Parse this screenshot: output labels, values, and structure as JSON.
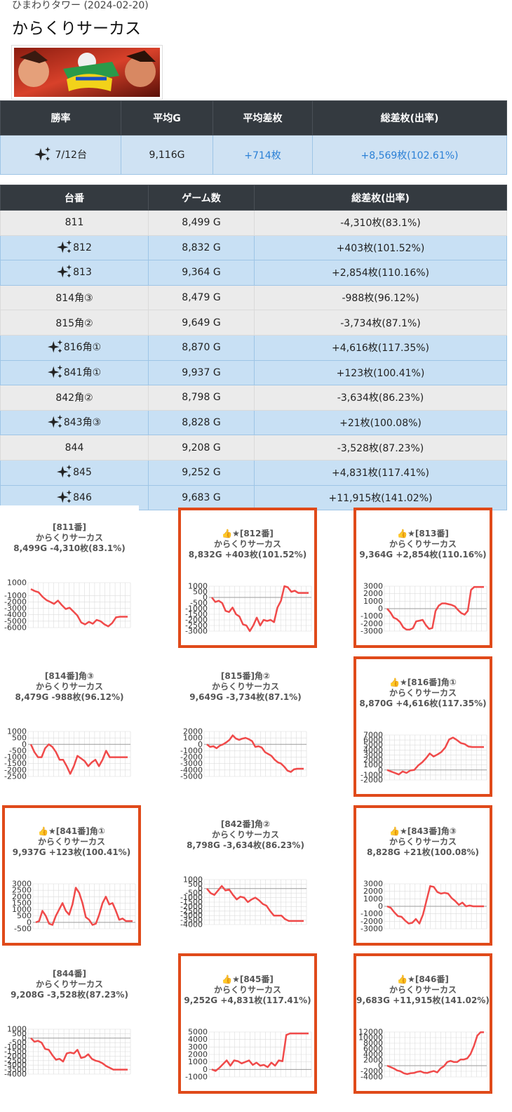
{
  "header": {
    "store_date": "ひまわりタワー (2024-02-20)",
    "machine_name": "からくりサーカス"
  },
  "colors": {
    "header_bg": "#343a40",
    "win_row": "#c8e0f4",
    "lose_row": "#ebebeb",
    "highlight_border": "#e04a1a",
    "line": "#f04a4a",
    "link_blue": "#2b80d6"
  },
  "summary": {
    "headers": [
      "勝率",
      "平均G",
      "平均差枚",
      "総差枚(出率)"
    ],
    "win_rate": "7/12台",
    "avg_games": "9,116G",
    "avg_diff": "+714枚",
    "total_diff": "+8,569枚(102.61%)"
  },
  "detail": {
    "headers": [
      "台番",
      "ゲーム数",
      "総差枚(出率)"
    ],
    "rows": [
      {
        "num": "811",
        "games": "8,499 G",
        "diff": "-4,310枚(83.1%)",
        "win": false
      },
      {
        "num": "812",
        "games": "8,832 G",
        "diff": "+403枚(101.52%)",
        "win": true
      },
      {
        "num": "813",
        "games": "9,364 G",
        "diff": "+2,854枚(110.16%)",
        "win": true
      },
      {
        "num": "814角③",
        "games": "8,479 G",
        "diff": "-988枚(96.12%)",
        "win": false
      },
      {
        "num": "815角②",
        "games": "9,649 G",
        "diff": "-3,734枚(87.1%)",
        "win": false
      },
      {
        "num": "816角①",
        "games": "8,870 G",
        "diff": "+4,616枚(117.35%)",
        "win": true
      },
      {
        "num": "841角①",
        "games": "9,937 G",
        "diff": "+123枚(100.41%)",
        "win": true
      },
      {
        "num": "842角②",
        "games": "8,798 G",
        "diff": "-3,634枚(86.23%)",
        "win": false
      },
      {
        "num": "843角③",
        "games": "8,828 G",
        "diff": "+21枚(100.08%)",
        "win": true
      },
      {
        "num": "844",
        "games": "9,208 G",
        "diff": "-3,528枚(87.23%)",
        "win": false
      },
      {
        "num": "845",
        "games": "9,252 G",
        "diff": "+4,831枚(117.41%)",
        "win": true
      },
      {
        "num": "846",
        "games": "9,683 G",
        "diff": "+11,915枚(141.02%)",
        "win": true
      }
    ]
  },
  "chart_data": [
    {
      "type": "line",
      "title": "[811番]",
      "line2": "からくりサーカス",
      "line3": "8,499G -4,310枚(83.1%)",
      "highlight": false,
      "ylim": [
        -6000,
        1000
      ],
      "yticks": [
        1000,
        -1000,
        -2000,
        -3000,
        -4000,
        -5000,
        -6000
      ],
      "values": [
        0,
        -300,
        -500,
        -1200,
        -1700,
        -2000,
        -2300,
        -1800,
        -2500,
        -3100,
        -2900,
        -3500,
        -4100,
        -5200,
        -5500,
        -5100,
        -5400,
        -4800,
        -5000,
        -5500,
        -5800,
        -5300,
        -4400,
        -4300,
        -4300,
        -4300
      ]
    },
    {
      "type": "line",
      "title": "👍★[812番]",
      "line2": "からくりサーカス",
      "line3": "8,832G +403枚(101.52%)",
      "highlight": true,
      "ylim": [
        -3000,
        1000
      ],
      "yticks": [
        1000,
        500,
        0,
        -500,
        -1000,
        -1500,
        -2000,
        -2500,
        -3000
      ],
      "values": [
        0,
        -400,
        -300,
        -500,
        -1200,
        -1300,
        -900,
        -1500,
        -1700,
        -2400,
        -2500,
        -3000,
        -2500,
        -1800,
        -2500,
        -2000,
        -2100,
        -2000,
        -2200,
        -900,
        -300,
        1000,
        900,
        500,
        600,
        400,
        400,
        400,
        400
      ]
    },
    {
      "type": "line",
      "title": "👍★[813番]",
      "line2": "からくりサーカス",
      "line3": "9,364G +2,854枚(110.16%)",
      "highlight": true,
      "ylim": [
        -3000,
        3000
      ],
      "yticks": [
        3000,
        2000,
        1000,
        0,
        -1000,
        -2000,
        -3000
      ],
      "values": [
        0,
        -500,
        -1200,
        -1400,
        -1800,
        -2500,
        -2800,
        -2800,
        -2600,
        -1700,
        -1600,
        -1500,
        -2200,
        -2700,
        -2600,
        -300,
        400,
        700,
        700,
        600,
        500,
        300,
        -200,
        -600,
        -800,
        -300,
        2500,
        2900,
        2900,
        2900,
        2900
      ]
    },
    {
      "type": "line",
      "title": "[814番]角③",
      "line2": "からくりサーカス",
      "line3": "8,479G -988枚(96.12%)",
      "highlight": false,
      "ylim": [
        -2500,
        1000
      ],
      "yticks": [
        1000,
        500,
        0,
        -500,
        -1000,
        -1500,
        -2000,
        -2500
      ],
      "values": [
        0,
        -600,
        -1000,
        -1000,
        -300,
        0,
        -200,
        -600,
        -1200,
        -1200,
        -1700,
        -2300,
        -1700,
        -900,
        -1100,
        -1300,
        -1700,
        -1400,
        -1200,
        -1700,
        -1200,
        -500,
        -1000,
        -1000,
        -1000,
        -1000,
        -1000,
        -1000
      ]
    },
    {
      "type": "line",
      "title": "[815番]角②",
      "line2": "からくりサーカス",
      "line3": "9,649G -3,734枚(87.1%)",
      "highlight": false,
      "ylim": [
        -5000,
        2000
      ],
      "yticks": [
        2000,
        1000,
        0,
        -1000,
        -2000,
        -3000,
        -4000,
        -5000
      ],
      "values": [
        0,
        -400,
        -300,
        -600,
        -200,
        0,
        300,
        700,
        1400,
        900,
        700,
        900,
        1000,
        800,
        500,
        -400,
        -300,
        -500,
        -1200,
        -1500,
        -1800,
        -2400,
        -2800,
        -3000,
        -3500,
        -4100,
        -4300,
        -3900,
        -3800,
        -3800,
        -3800
      ]
    },
    {
      "type": "line",
      "title": "👍★[816番]角①",
      "line2": "からくりサーカス",
      "line3": "8,870G +4,616枚(117.35%)",
      "highlight": true,
      "ylim": [
        -2000,
        7000
      ],
      "yticks": [
        7000,
        6000,
        5000,
        4000,
        3000,
        2000,
        1000,
        0,
        -1000,
        -2000
      ],
      "values": [
        0,
        -300,
        -600,
        -900,
        -300,
        -600,
        -100,
        0,
        900,
        1500,
        2300,
        3300,
        2700,
        3100,
        3600,
        4500,
        6100,
        6500,
        6000,
        5400,
        5200,
        4700,
        4600,
        4600,
        4600,
        4600
      ]
    },
    {
      "type": "line",
      "title": "👍★[841番]角①",
      "line2": "からくりサーカス",
      "line3": "9,937G +123枚(100.41%)",
      "highlight": true,
      "ylim": [
        -500,
        3000
      ],
      "yticks": [
        3000,
        2500,
        2000,
        1500,
        1000,
        500,
        0,
        -500
      ],
      "values": [
        0,
        100,
        900,
        500,
        -100,
        -200,
        500,
        1000,
        1500,
        900,
        600,
        1400,
        2700,
        2300,
        1500,
        400,
        200,
        -200,
        -100,
        600,
        1500,
        2000,
        1400,
        1500,
        900,
        200,
        300,
        100,
        100,
        100
      ]
    },
    {
      "type": "line",
      "title": "[842番]角②",
      "line2": "からくりサーカス",
      "line3": "8,798G -3,634枚(86.23%)",
      "highlight": false,
      "ylim": [
        -4000,
        1000
      ],
      "yticks": [
        1000,
        500,
        0,
        -500,
        -1000,
        -1500,
        -2000,
        -2500,
        -3000,
        -3500,
        -4000
      ],
      "values": [
        0,
        -500,
        -700,
        -200,
        300,
        -200,
        -100,
        -700,
        -1200,
        -900,
        -1000,
        -1500,
        -1200,
        -1000,
        -1300,
        -1700,
        -1900,
        -2500,
        -3000,
        -3000,
        -3000,
        -3400,
        -3600,
        -3600,
        -3600,
        -3600,
        -3600
      ]
    },
    {
      "type": "line",
      "title": "👍★[843番]角③",
      "line2": "からくりサーカス",
      "line3": "8,828G +21枚(100.08%)",
      "highlight": true,
      "ylim": [
        -3000,
        3000
      ],
      "yticks": [
        3000,
        2000,
        1000,
        0,
        -1000,
        -2000,
        -3000
      ],
      "values": [
        0,
        -200,
        -800,
        -1300,
        -1400,
        -1900,
        -2300,
        -2200,
        -1700,
        -2300,
        -1100,
        800,
        2700,
        2600,
        1900,
        1700,
        1800,
        1700,
        1100,
        700,
        200,
        500,
        0,
        100,
        0,
        0,
        0,
        0
      ]
    },
    {
      "type": "line",
      "title": "[844番]",
      "line2": "からくりサーカス",
      "line3": "9,208G -3,528枚(87.23%)",
      "highlight": false,
      "ylim": [
        -4000,
        1000
      ],
      "yticks": [
        1000,
        500,
        0,
        -500,
        -1000,
        -1500,
        -2000,
        -2500,
        -3000,
        -3500,
        -4000
      ],
      "values": [
        0,
        -400,
        -300,
        -500,
        -1200,
        -1300,
        -1900,
        -2400,
        -2300,
        -2600,
        -1700,
        -1600,
        -1700,
        -1300,
        -2200,
        -2100,
        -1800,
        -2300,
        -2500,
        -2600,
        -2800,
        -3100,
        -3300,
        -3500,
        -3500,
        -3500,
        -3500,
        -3500
      ]
    },
    {
      "type": "line",
      "title": "👍★[845番]",
      "line2": "からくりサーカス",
      "line3": "9,252G +4,831枚(117.41%)",
      "highlight": true,
      "ylim": [
        -1000,
        5000
      ],
      "yticks": [
        5000,
        4000,
        3000,
        2000,
        1000,
        0,
        -1000
      ],
      "values": [
        0,
        -200,
        200,
        700,
        1200,
        500,
        1200,
        1100,
        800,
        1000,
        1200,
        600,
        900,
        500,
        600,
        300,
        900,
        500,
        1200,
        1100,
        4600,
        4800,
        4800,
        4800,
        4800,
        4800,
        4800
      ]
    },
    {
      "type": "line",
      "title": "👍★[846番]",
      "line2": "からくりサーカス",
      "line3": "9,683G +11,915枚(141.02%)",
      "highlight": true,
      "ylim": [
        -4000,
        12000
      ],
      "yticks": [
        12000,
        10000,
        8000,
        6000,
        4000,
        2000,
        0,
        -2000,
        -4000
      ],
      "values": [
        0,
        -500,
        -1000,
        -1700,
        -2000,
        -2700,
        -3000,
        -2700,
        -2600,
        -2200,
        -2000,
        -2500,
        -2600,
        -2200,
        -1900,
        -2400,
        -1000,
        -200,
        1300,
        1700,
        1300,
        1300,
        2200,
        2200,
        2600,
        4200,
        7000,
        10700,
        11900,
        11900
      ]
    }
  ]
}
